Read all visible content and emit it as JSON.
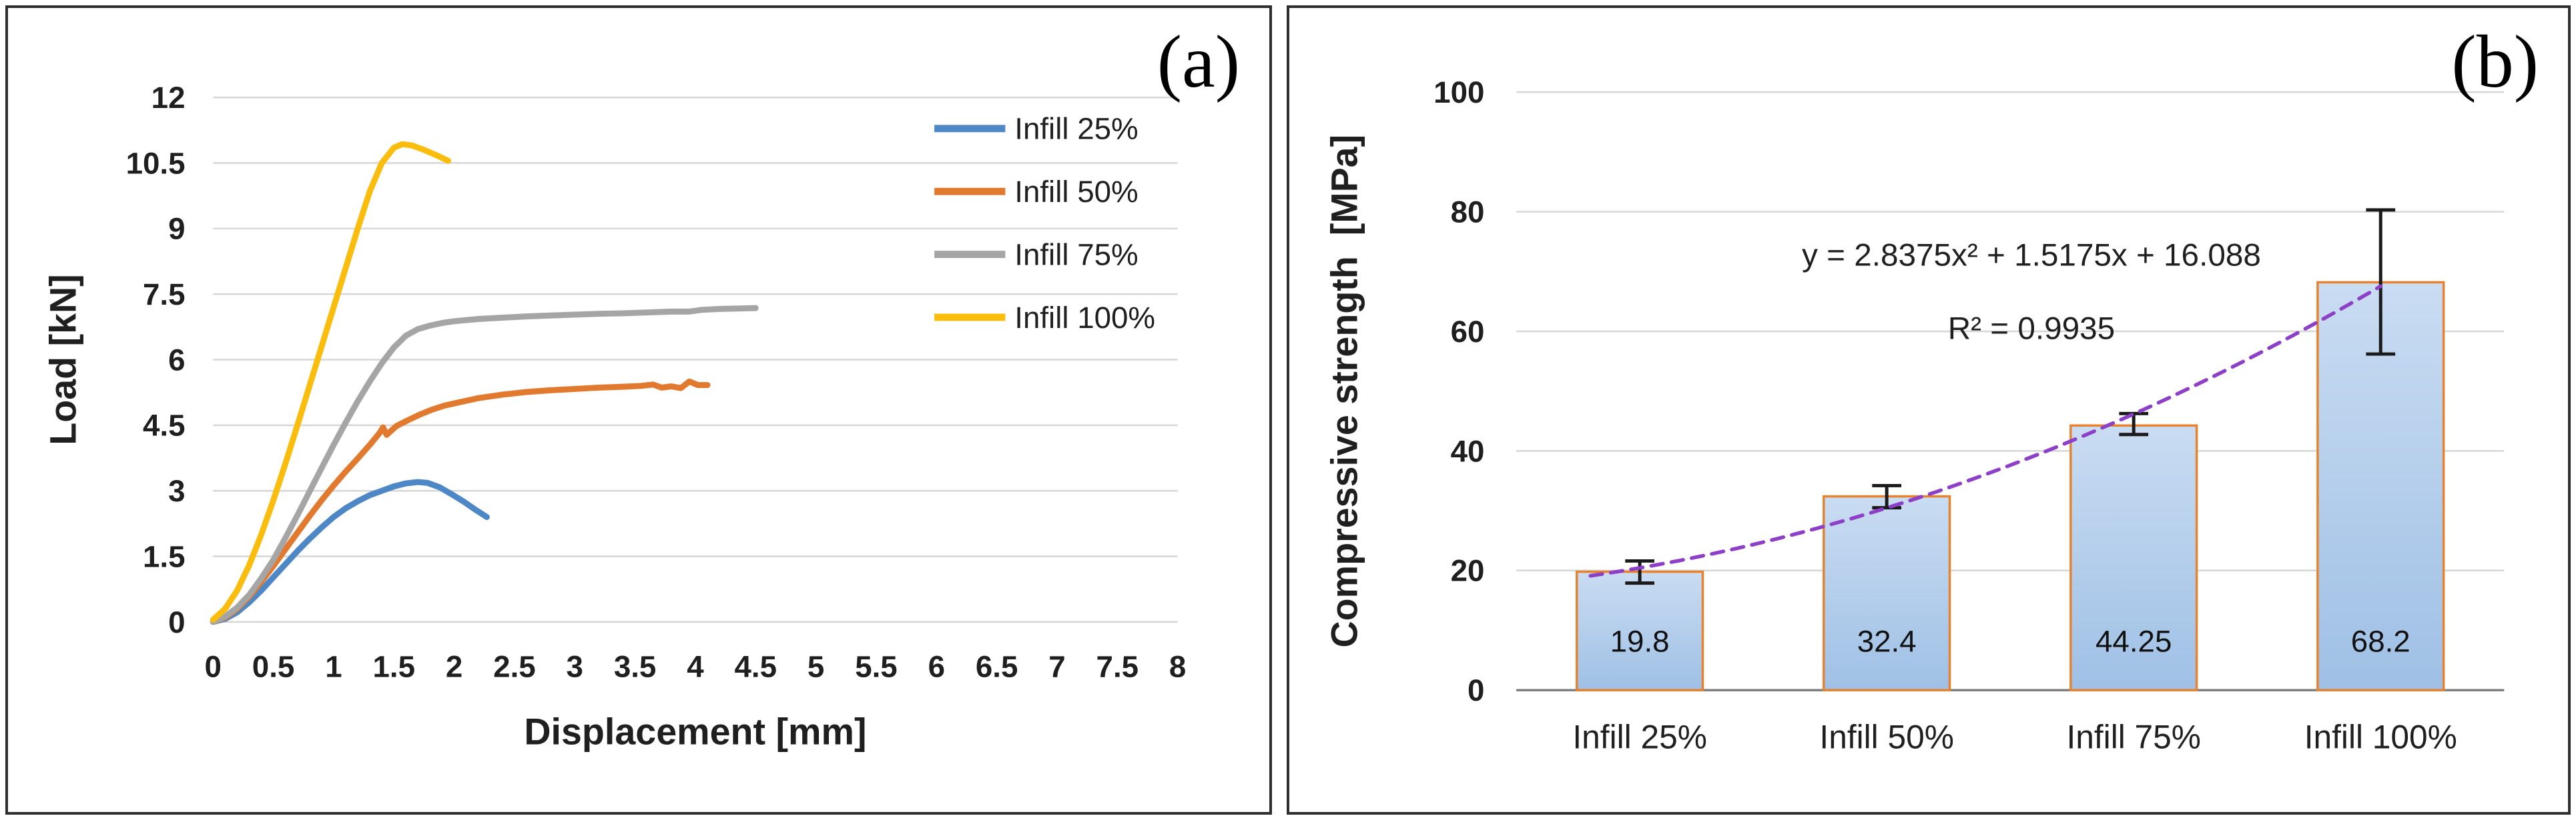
{
  "figure": {
    "background": "#ffffff",
    "panel_border_color": "#2e2e2e",
    "gridline_color": "#d6d6d6",
    "text_color": "#1f1f1f"
  },
  "panels": {
    "a": {
      "corner_label": "(a)"
    },
    "b": {
      "corner_label": "(b)"
    }
  },
  "chart_data": [
    {
      "type": "line",
      "panel": "a",
      "title": "",
      "xlabel": "Displacement [mm]",
      "ylabel": "Load [kN]",
      "xlim": [
        0,
        8
      ],
      "ylim": [
        0,
        12
      ],
      "xticks": [
        0,
        0.5,
        1,
        1.5,
        2,
        2.5,
        3,
        3.5,
        4,
        4.5,
        5,
        5.5,
        6,
        6.5,
        7,
        7.5,
        8
      ],
      "yticks": [
        0,
        1.5,
        3,
        4.5,
        6,
        7.5,
        9,
        10.5,
        12
      ],
      "grid": "horizontal",
      "legend_position": "right",
      "series": [
        {
          "name": "Infill 25%",
          "color": "#4e87c6",
          "points": [
            [
              0,
              0
            ],
            [
              0.1,
              0.07
            ],
            [
              0.2,
              0.22
            ],
            [
              0.3,
              0.45
            ],
            [
              0.4,
              0.72
            ],
            [
              0.5,
              1.02
            ],
            [
              0.6,
              1.32
            ],
            [
              0.7,
              1.62
            ],
            [
              0.8,
              1.9
            ],
            [
              0.9,
              2.16
            ],
            [
              1.0,
              2.4
            ],
            [
              1.1,
              2.6
            ],
            [
              1.2,
              2.76
            ],
            [
              1.3,
              2.9
            ],
            [
              1.4,
              3.0
            ],
            [
              1.5,
              3.1
            ],
            [
              1.6,
              3.17
            ],
            [
              1.7,
              3.2
            ],
            [
              1.78,
              3.18
            ],
            [
              1.88,
              3.08
            ],
            [
              1.98,
              2.92
            ],
            [
              2.08,
              2.75
            ],
            [
              2.18,
              2.56
            ],
            [
              2.27,
              2.4
            ]
          ]
        },
        {
          "name": "Infill 50%",
          "color": "#e17a2f",
          "points": [
            [
              0,
              0
            ],
            [
              0.1,
              0.1
            ],
            [
              0.2,
              0.3
            ],
            [
              0.3,
              0.58
            ],
            [
              0.4,
              0.92
            ],
            [
              0.5,
              1.28
            ],
            [
              0.6,
              1.66
            ],
            [
              0.7,
              2.04
            ],
            [
              0.8,
              2.42
            ],
            [
              0.9,
              2.78
            ],
            [
              1.0,
              3.12
            ],
            [
              1.1,
              3.44
            ],
            [
              1.2,
              3.74
            ],
            [
              1.3,
              4.05
            ],
            [
              1.38,
              4.32
            ],
            [
              1.41,
              4.45
            ],
            [
              1.44,
              4.28
            ],
            [
              1.52,
              4.48
            ],
            [
              1.62,
              4.62
            ],
            [
              1.72,
              4.75
            ],
            [
              1.82,
              4.86
            ],
            [
              1.92,
              4.95
            ],
            [
              2.05,
              5.03
            ],
            [
              2.2,
              5.12
            ],
            [
              2.4,
              5.2
            ],
            [
              2.6,
              5.26
            ],
            [
              2.8,
              5.3
            ],
            [
              3.0,
              5.33
            ],
            [
              3.2,
              5.36
            ],
            [
              3.4,
              5.38
            ],
            [
              3.55,
              5.4
            ],
            [
              3.65,
              5.43
            ],
            [
              3.72,
              5.36
            ],
            [
              3.8,
              5.39
            ],
            [
              3.88,
              5.35
            ],
            [
              3.95,
              5.5
            ],
            [
              4.02,
              5.42
            ],
            [
              4.1,
              5.42
            ]
          ]
        },
        {
          "name": "Infill 75%",
          "color": "#a5a5a5",
          "points": [
            [
              0,
              0
            ],
            [
              0.1,
              0.12
            ],
            [
              0.2,
              0.33
            ],
            [
              0.3,
              0.62
            ],
            [
              0.4,
              1.0
            ],
            [
              0.5,
              1.42
            ],
            [
              0.6,
              1.92
            ],
            [
              0.7,
              2.44
            ],
            [
              0.8,
              2.98
            ],
            [
              0.9,
              3.52
            ],
            [
              1.0,
              4.05
            ],
            [
              1.1,
              4.56
            ],
            [
              1.2,
              5.05
            ],
            [
              1.3,
              5.5
            ],
            [
              1.4,
              5.92
            ],
            [
              1.5,
              6.28
            ],
            [
              1.6,
              6.55
            ],
            [
              1.7,
              6.7
            ],
            [
              1.8,
              6.78
            ],
            [
              1.9,
              6.84
            ],
            [
              2.0,
              6.88
            ],
            [
              2.2,
              6.93
            ],
            [
              2.4,
              6.96
            ],
            [
              2.6,
              6.99
            ],
            [
              2.8,
              7.01
            ],
            [
              3.0,
              7.03
            ],
            [
              3.2,
              7.05
            ],
            [
              3.4,
              7.06
            ],
            [
              3.6,
              7.08
            ],
            [
              3.8,
              7.1
            ],
            [
              3.95,
              7.1
            ],
            [
              4.05,
              7.14
            ],
            [
              4.2,
              7.16
            ],
            [
              4.35,
              7.17
            ],
            [
              4.5,
              7.18
            ]
          ]
        },
        {
          "name": "Infill 100%",
          "color": "#fbbd0d",
          "points": [
            [
              0,
              0.05
            ],
            [
              0.1,
              0.3
            ],
            [
              0.2,
              0.72
            ],
            [
              0.3,
              1.3
            ],
            [
              0.4,
              2.0
            ],
            [
              0.5,
              2.78
            ],
            [
              0.6,
              3.62
            ],
            [
              0.7,
              4.5
            ],
            [
              0.8,
              5.4
            ],
            [
              0.9,
              6.3
            ],
            [
              1.0,
              7.2
            ],
            [
              1.1,
              8.1
            ],
            [
              1.2,
              9.0
            ],
            [
              1.3,
              9.85
            ],
            [
              1.4,
              10.5
            ],
            [
              1.5,
              10.85
            ],
            [
              1.57,
              10.93
            ],
            [
              1.65,
              10.9
            ],
            [
              1.75,
              10.8
            ],
            [
              1.85,
              10.68
            ],
            [
              1.95,
              10.55
            ]
          ]
        }
      ]
    },
    {
      "type": "bar",
      "panel": "b",
      "title": "",
      "xlabel": "",
      "ylabel": "Compressive strength  [MPa]",
      "ylim": [
        0,
        100
      ],
      "yticks": [
        0,
        20,
        40,
        60,
        80,
        100
      ],
      "grid": "horizontal",
      "categories": [
        "Infill 25%",
        "Infill 50%",
        "Infill 75%",
        "Infill 100%"
      ],
      "values": [
        19.8,
        32.4,
        44.25,
        68.2
      ],
      "value_labels": [
        "19.8",
        "32.4",
        "44.25",
        "68.2"
      ],
      "error_bars": {
        "plus": [
          1.8,
          1.8,
          2.0,
          12.1
        ],
        "minus": [
          1.9,
          1.9,
          1.5,
          12.0
        ]
      },
      "bar_fill_top": "#c9dcf2",
      "bar_fill_bottom": "#9fc0e5",
      "bar_border_color": "#e8822f",
      "error_bar_color": "#1a1a1a",
      "axis_line_color": "#7f7f7f",
      "trendline": {
        "color": "#8d3fc7",
        "style": "dashed",
        "equation": "y = 2.8375x² + 1.5175x + 16.088",
        "r_squared": "R² = 0.9935",
        "coefficients": {
          "a": 2.8375,
          "b": 1.5175,
          "c": 16.088
        },
        "x_range": [
          0.8,
          4.0
        ]
      }
    }
  ]
}
